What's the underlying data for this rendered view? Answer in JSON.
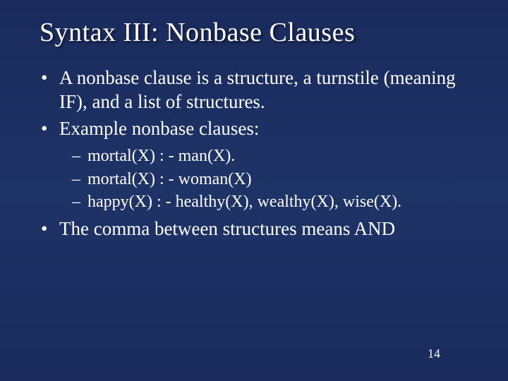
{
  "background_gradient": [
    "#1a2a5c",
    "#1e3366",
    "#1a2a5c"
  ],
  "text_color": "#ffffff",
  "font_family": "Times New Roman",
  "title": {
    "text": "Syntax III: Nonbase Clauses",
    "fontsize": 38,
    "shadow": "2px 2px 3px rgba(0,0,0,0.6)"
  },
  "bullets": {
    "level1_fontsize": 27,
    "level2_fontsize": 24,
    "items": [
      {
        "text": "A nonbase clause is a structure, a turnstile (meaning IF), and a list of structures."
      },
      {
        "text": "Example nonbase clauses:",
        "sub": [
          "mortal(X) : - man(X).",
          "mortal(X) : - woman(X)",
          "happy(X) : - healthy(X), wealthy(X), wise(X)."
        ]
      },
      {
        "text": "The comma between structures means AND"
      }
    ]
  },
  "page_number": "14",
  "page_number_fontsize": 18
}
